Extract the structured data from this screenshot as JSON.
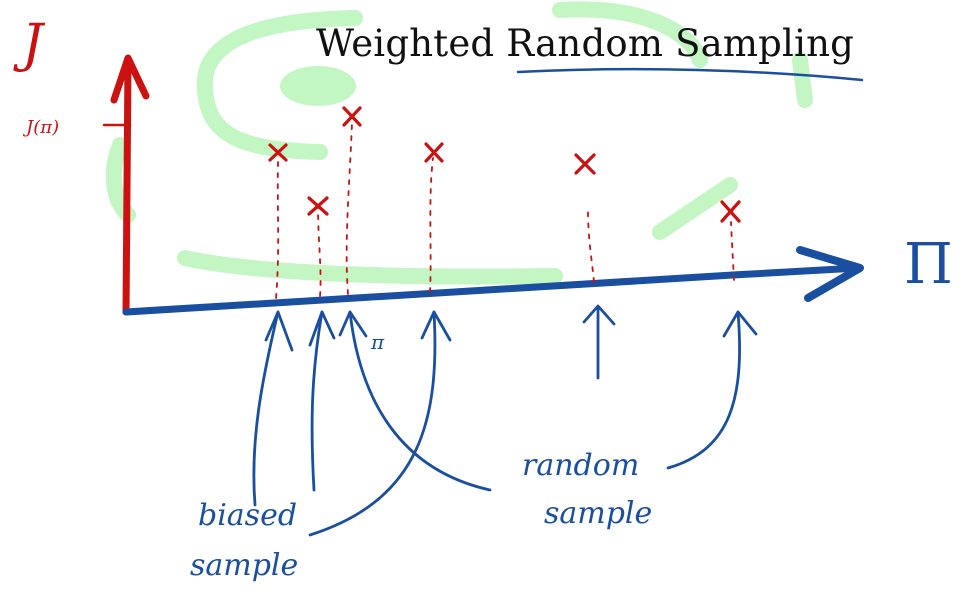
{
  "title": "Weighted Random Sampling",
  "axes": {
    "y_label": "J",
    "y_tick_label": "J(π)",
    "x_label": "Π"
  },
  "annotations": {
    "pi_marker": "π",
    "biased_sample_line1": "biased",
    "biased_sample_line2": "sample",
    "random_sample_line1": "random",
    "random_sample_line2": "sample"
  },
  "colors": {
    "title": "#111111",
    "y_axis": "#cc1111",
    "x_axis": "#1a4fa0",
    "markers": "#cc1111",
    "arrows": "#1a4fa0",
    "background_scribbles": "#b8f5b8"
  }
}
